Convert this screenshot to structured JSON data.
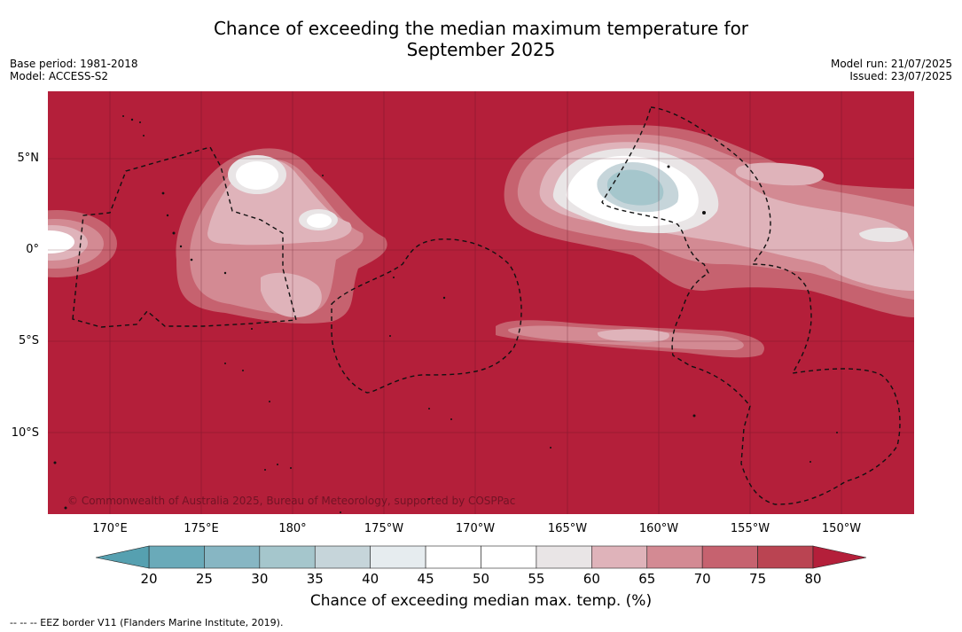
{
  "title_line1": "Chance of exceeding the median maximum temperature for",
  "title_line2": "September 2025",
  "base_period": "Base period: 1981-2018",
  "model": "Model: ACCESS-S2",
  "model_run": "Model run: 21/07/2025",
  "issued": "Issued: 23/07/2025",
  "copyright": "© Commonwealth of Australia 2025, Bureau of Meteorology, supported by COSPPac",
  "lat_labels": [
    "5°N",
    "0°",
    "5°S",
    "10°S"
  ],
  "lon_labels": [
    "170°E",
    "175°E",
    "180°",
    "175°W",
    "170°W",
    "165°W",
    "160°W",
    "155°W",
    "150°W"
  ],
  "colorbar": {
    "label": "Chance of exceeding median max. temp. (%)",
    "ticks": [
      "20",
      "25",
      "30",
      "35",
      "40",
      "45",
      "50",
      "55",
      "60",
      "65",
      "70",
      "75",
      "80"
    ],
    "colors": [
      "#6aaab9",
      "#87b6c3",
      "#a5c6cc",
      "#c6d5da",
      "#e6ecef",
      "#ffffff",
      "#ffffff",
      "#e9e5e6",
      "#dfb3ba",
      "#d38a93",
      "#c6626f",
      "#ba4452"
    ],
    "under_color": "#56a0b0",
    "over_color": "#b41f3a"
  },
  "footnote": "--  --  -- EEZ border V11 (Flanders Marine Institute, 2019).",
  "base_color": "#b41f3a"
}
